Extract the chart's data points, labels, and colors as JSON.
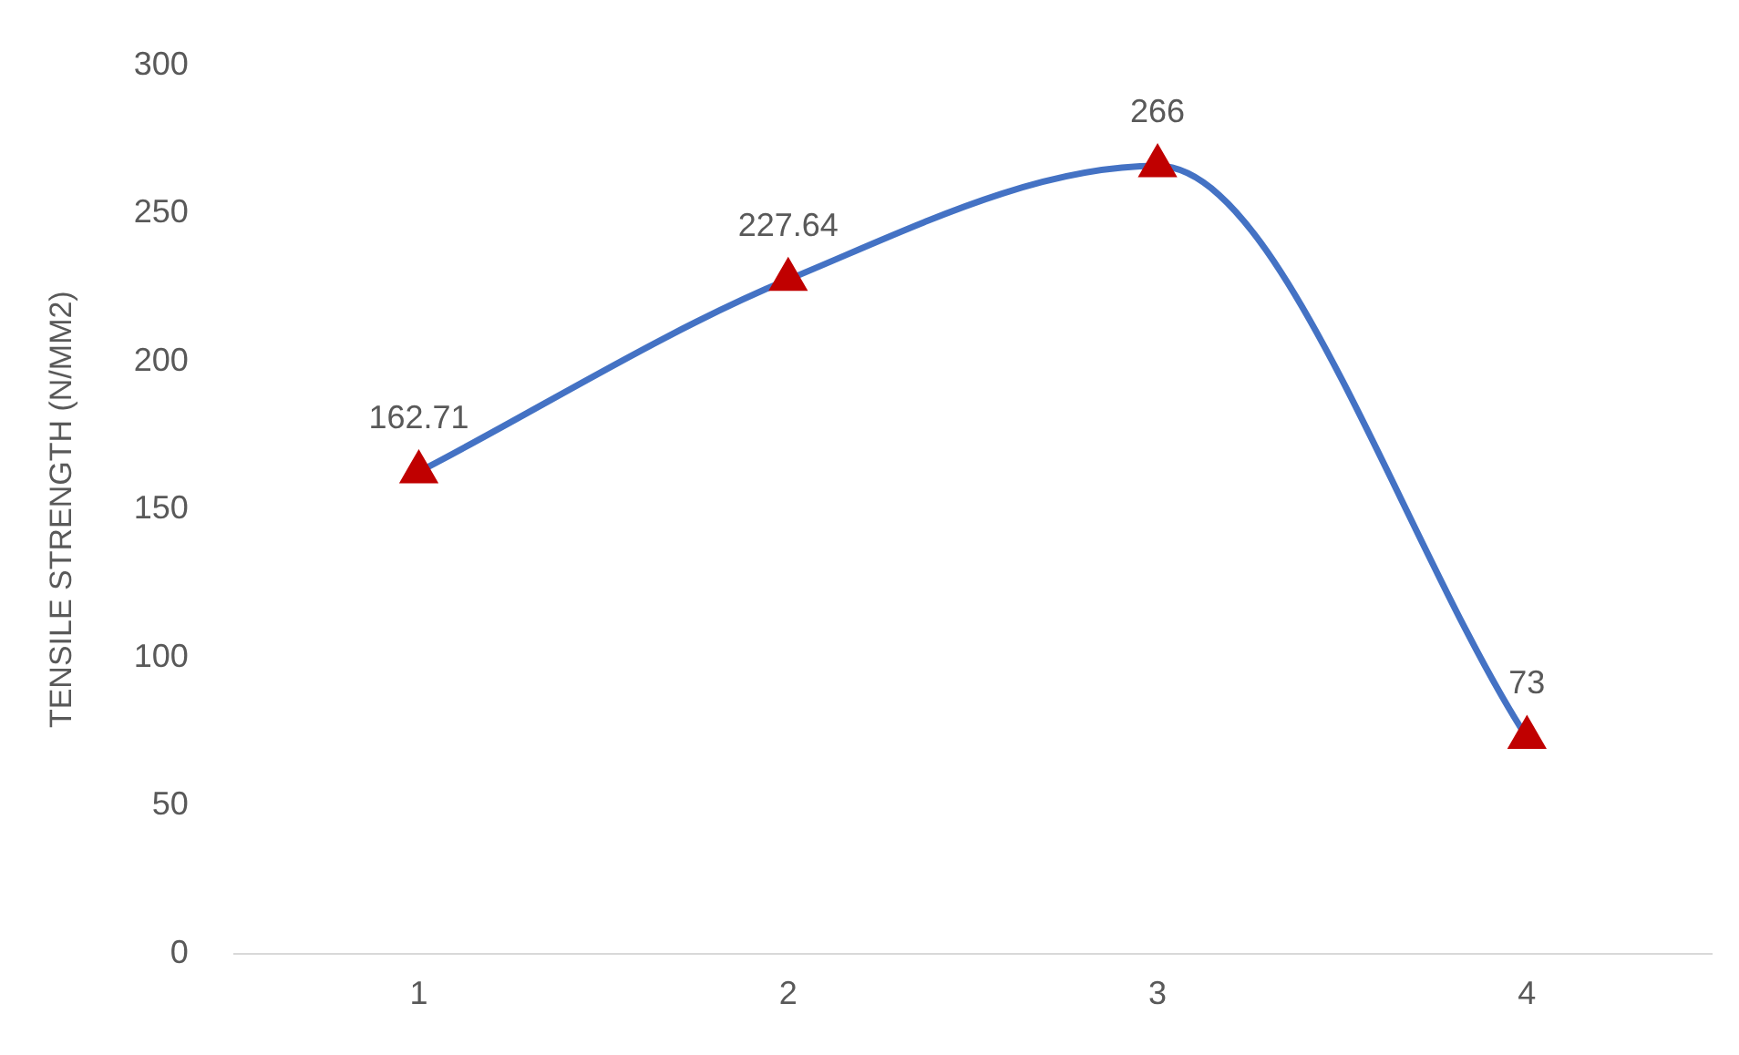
{
  "chart_data": {
    "type": "line",
    "ylabel": "TENSILE STRENGTH (N/MM2)",
    "categories": [
      "1",
      "2",
      "3",
      "4"
    ],
    "series": [
      {
        "color": "#4472c4",
        "colors": [
          "#c00000",
          "#c00000",
          "#c00000",
          "#c00000"
        ],
        "values": [
          162.71,
          227.64,
          266,
          73
        ]
      }
    ],
    "marker": "triangle",
    "data_labels": true,
    "grid": false,
    "legend": false,
    "ylim": [
      0,
      300
    ],
    "yticks": [
      0,
      50,
      100,
      150,
      200,
      250,
      300
    ]
  }
}
